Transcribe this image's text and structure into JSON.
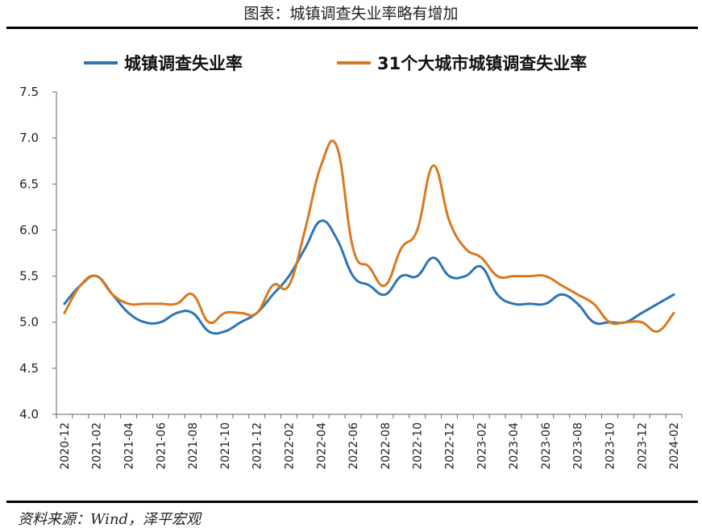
{
  "figure": {
    "title": "图表：城镇调查失业率略有增加",
    "source": "资料来源：Wind，泽平宏观"
  },
  "chart_data": {
    "type": "line",
    "categories": [
      "2020-12",
      "2021-01",
      "2021-02",
      "2021-03",
      "2021-04",
      "2021-05",
      "2021-06",
      "2021-07",
      "2021-08",
      "2021-09",
      "2021-10",
      "2021-11",
      "2021-12",
      "2022-01",
      "2022-02",
      "2022-03",
      "2022-04",
      "2022-05",
      "2022-06",
      "2022-07",
      "2022-08",
      "2022-09",
      "2022-10",
      "2022-11",
      "2022-12",
      "2023-01",
      "2023-02",
      "2023-03",
      "2023-04",
      "2023-05",
      "2023-06",
      "2023-07",
      "2023-08",
      "2023-09",
      "2023-10",
      "2023-11",
      "2023-12",
      "2024-01",
      "2024-02"
    ],
    "tick_labels": [
      "2020-12",
      "2021-02",
      "2021-04",
      "2021-06",
      "2021-08",
      "2021-10",
      "2021-12",
      "2022-02",
      "2022-04",
      "2022-06",
      "2022-08",
      "2022-10",
      "2022-12",
      "2023-02",
      "2023-04",
      "2023-06",
      "2023-08",
      "2023-10",
      "2023-12",
      "2024-02"
    ],
    "series": [
      {
        "name": "城镇调查失业率",
        "color": "#2E75B6",
        "values": [
          5.2,
          5.4,
          5.5,
          5.3,
          5.1,
          5.0,
          5.0,
          5.1,
          5.1,
          4.9,
          4.9,
          5.0,
          5.1,
          5.3,
          5.5,
          5.8,
          6.1,
          5.9,
          5.5,
          5.4,
          5.3,
          5.5,
          5.5,
          5.7,
          5.5,
          5.5,
          5.6,
          5.3,
          5.2,
          5.2,
          5.2,
          5.3,
          5.2,
          5.0,
          5.0,
          5.0,
          5.1,
          5.2,
          5.3
        ]
      },
      {
        "name": "31个大城市城镇调查失业率",
        "color": "#D9791F",
        "values": [
          5.1,
          5.4,
          5.5,
          5.3,
          5.2,
          5.2,
          5.2,
          5.2,
          5.3,
          5.0,
          5.1,
          5.1,
          5.1,
          5.4,
          5.4,
          6.0,
          6.7,
          6.9,
          5.8,
          5.6,
          5.4,
          5.8,
          6.0,
          6.7,
          6.1,
          5.8,
          5.7,
          5.5,
          5.5,
          5.5,
          5.5,
          5.4,
          5.3,
          5.2,
          5.0,
          5.0,
          5.0,
          4.9,
          5.1
        ]
      }
    ],
    "yticks": [
      "4.0",
      "4.5",
      "5.0",
      "5.5",
      "6.0",
      "6.5",
      "7.0",
      "7.5"
    ],
    "ylim": [
      4.0,
      7.5
    ],
    "grid": false,
    "legend": "top"
  }
}
